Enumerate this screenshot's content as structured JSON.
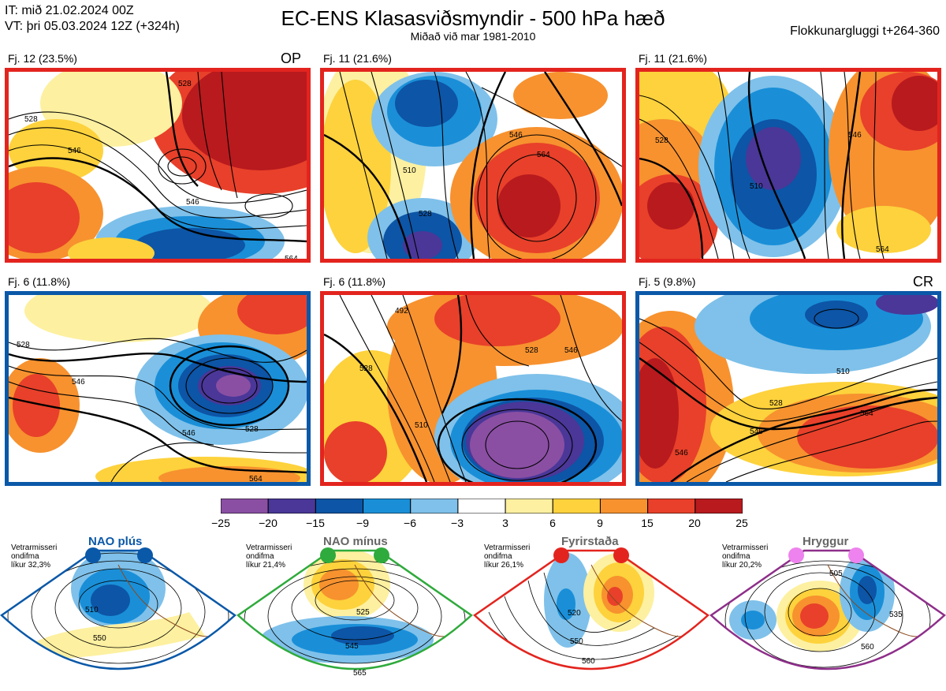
{
  "header": {
    "init_time": "IT: mið 21.02.2024 00Z",
    "valid_time": "VT: þri 05.03.2024 12Z  (+324h)",
    "title": "EC-ENS Klasasviðsmyndir - 500 hPa hæð",
    "subtitle": "Miðað við mar 1981-2010",
    "window": "Flokkunargluggi t+264-360"
  },
  "panels": [
    {
      "label": "Fj. 12 (23.5%)",
      "tag": "OP",
      "border_color": "#e3241e",
      "contours": [
        "528",
        "546",
        "546",
        "528",
        "564"
      ]
    },
    {
      "label": "Fj. 11 (21.6%)",
      "tag": "",
      "border_color": "#e3241e",
      "contours": [
        "510",
        "546",
        "564",
        "528"
      ]
    },
    {
      "label": "Fj. 11 (21.6%)",
      "tag": "",
      "border_color": "#e3241e",
      "contours": [
        "528",
        "510",
        "546",
        "564"
      ]
    },
    {
      "label": "Fj. 6 (11.8%)",
      "tag": "",
      "border_color": "#0a58a8",
      "contours": [
        "528",
        "546",
        "546",
        "528",
        "564"
      ]
    },
    {
      "label": "Fj. 6 (11.8%)",
      "tag": "",
      "border_color": "#e3241e",
      "contours": [
        "492",
        "528",
        "510",
        "528",
        "546"
      ]
    },
    {
      "label": "Fj. 5 (9.8%)",
      "tag": "CR",
      "border_color": "#0a58a8",
      "contours": [
        "510",
        "528",
        "546",
        "564",
        "546"
      ]
    }
  ],
  "colorbar": {
    "ticks": [
      "−25",
      "−20",
      "−15",
      "−9",
      "−6",
      "−3",
      "3",
      "6",
      "9",
      "15",
      "20",
      "25"
    ],
    "colors": [
      "#8a4fa3",
      "#4a3798",
      "#0d55a6",
      "#1a8fd8",
      "#7fc1ea",
      "#ffffff",
      "#fdf0a0",
      "#fdd23c",
      "#f7922f",
      "#e8402a",
      "#b81a1e"
    ]
  },
  "regimes": [
    {
      "name": "NAO plús",
      "note": [
        "Vetrarmisseri",
        "ondifma",
        "líkur 32,3%"
      ],
      "color": "#0a58a8",
      "dot_color": "#0a58a8",
      "labels": [
        "510",
        "550"
      ]
    },
    {
      "name": "NAO mínus",
      "note": [
        "Vetrarmisseri",
        "ondifma",
        "líkur 21,4%"
      ],
      "color": "#2faa3c",
      "dot_color": "#2faa3c",
      "labels": [
        "525",
        "545",
        "565"
      ]
    },
    {
      "name": "Fyrirstaða",
      "note": [
        "Vetrarmisseri",
        "ondifma",
        "líkur 26,1%"
      ],
      "color": "#e3241e",
      "dot_color": "#e3241e",
      "labels": [
        "520",
        "550",
        "560"
      ]
    },
    {
      "name": "Hryggur",
      "note": [
        "Vetrarmisseri",
        "ondifma",
        "líkur 20,2%"
      ],
      "color": "#8e2e8a",
      "dot_color": "#ee82ee",
      "labels": [
        "505",
        "535",
        "560"
      ]
    }
  ]
}
